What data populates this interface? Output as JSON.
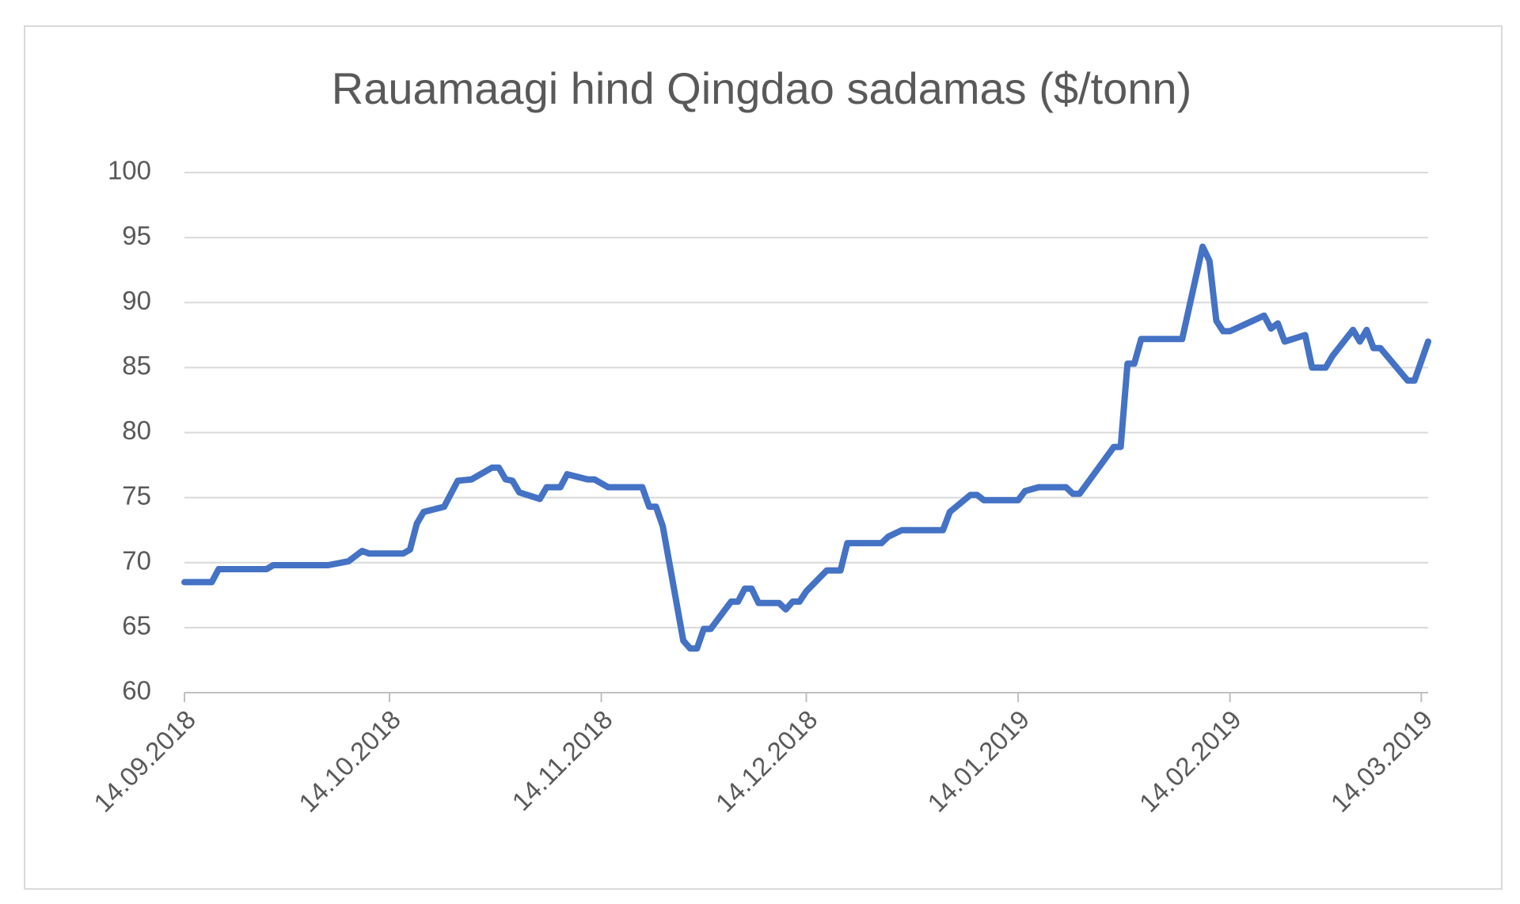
{
  "chart_data": {
    "type": "line",
    "title": "Rauamaagi hind Qingdao sadamas ($/tonn)",
    "x": [
      "2018-09-14",
      "2018-09-18",
      "2018-09-19",
      "2018-09-26",
      "2018-09-27",
      "2018-10-05",
      "2018-10-08",
      "2018-10-10",
      "2018-10-11",
      "2018-10-16",
      "2018-10-17",
      "2018-10-18",
      "2018-10-19",
      "2018-10-22",
      "2018-10-23",
      "2018-10-24",
      "2018-10-26",
      "2018-10-29",
      "2018-10-30",
      "2018-10-31",
      "2018-11-01",
      "2018-11-02",
      "2018-11-05",
      "2018-11-06",
      "2018-11-08",
      "2018-11-09",
      "2018-11-12",
      "2018-11-13",
      "2018-11-15",
      "2018-11-20",
      "2018-11-21",
      "2018-11-22",
      "2018-11-23",
      "2018-11-26",
      "2018-11-27",
      "2018-11-28",
      "2018-11-29",
      "2018-11-30",
      "2018-12-03",
      "2018-12-04",
      "2018-12-05",
      "2018-12-06",
      "2018-12-07",
      "2018-12-10",
      "2018-12-11",
      "2018-12-12",
      "2018-12-13",
      "2018-12-14",
      "2018-12-17",
      "2018-12-19",
      "2018-12-20",
      "2018-12-25",
      "2018-12-26",
      "2018-12-28",
      "2019-01-03",
      "2019-01-04",
      "2019-01-07",
      "2019-01-08",
      "2019-01-09",
      "2019-01-14",
      "2019-01-15",
      "2019-01-17",
      "2019-01-21",
      "2019-01-22",
      "2019-01-23",
      "2019-01-28",
      "2019-01-29",
      "2019-01-30",
      "2019-01-31",
      "2019-02-01",
      "2019-02-07",
      "2019-02-10",
      "2019-02-11",
      "2019-02-12",
      "2019-02-13",
      "2019-02-14",
      "2019-02-19",
      "2019-02-20",
      "2019-02-21",
      "2019-02-22",
      "2019-02-25",
      "2019-02-26",
      "2019-02-28",
      "2019-03-01",
      "2019-03-04",
      "2019-03-05",
      "2019-03-06",
      "2019-03-07",
      "2019-03-08",
      "2019-03-12",
      "2019-03-13",
      "2019-03-15"
    ],
    "values": [
      68.5,
      68.5,
      69.5,
      69.5,
      69.8,
      69.8,
      70.1,
      70.9,
      70.7,
      70.7,
      71.0,
      73.0,
      73.9,
      74.3,
      75.3,
      76.3,
      76.4,
      77.3,
      77.3,
      76.4,
      76.3,
      75.4,
      74.9,
      75.8,
      75.8,
      76.8,
      76.4,
      76.4,
      75.8,
      75.8,
      74.3,
      74.3,
      72.8,
      64.0,
      63.4,
      63.4,
      64.9,
      64.9,
      67.0,
      67.0,
      68.0,
      68.0,
      66.9,
      66.9,
      66.4,
      67.0,
      67.0,
      67.8,
      69.4,
      69.4,
      71.5,
      71.5,
      72.0,
      72.5,
      72.5,
      73.9,
      75.2,
      75.2,
      74.8,
      74.8,
      75.5,
      75.8,
      75.8,
      75.3,
      75.3,
      78.9,
      78.9,
      85.3,
      85.3,
      87.2,
      87.2,
      94.3,
      93.2,
      88.6,
      87.8,
      87.8,
      89.0,
      88.0,
      88.4,
      87.0,
      87.5,
      85.0,
      85.0,
      85.9,
      87.9,
      87.0,
      87.9,
      86.5,
      86.5,
      84.0,
      84.0,
      87.0
    ],
    "color": "#4472c4",
    "xlim": [
      "2018-09-14",
      "2019-03-15"
    ],
    "xticks": [
      {
        "value": "2018-09-14",
        "label": "14.09.2018"
      },
      {
        "value": "2018-10-14",
        "label": "14.10.2018"
      },
      {
        "value": "2018-11-14",
        "label": "14.11.2018"
      },
      {
        "value": "2018-12-14",
        "label": "14.12.2018"
      },
      {
        "value": "2019-01-14",
        "label": "14.01.2019"
      },
      {
        "value": "2019-02-14",
        "label": "14.02.2019"
      },
      {
        "value": "2019-03-14",
        "label": "14.03.2019"
      }
    ],
    "ylim": [
      60,
      100
    ],
    "yticks": [
      60,
      65,
      70,
      75,
      80,
      85,
      90,
      95,
      100
    ],
    "grid": true
  }
}
